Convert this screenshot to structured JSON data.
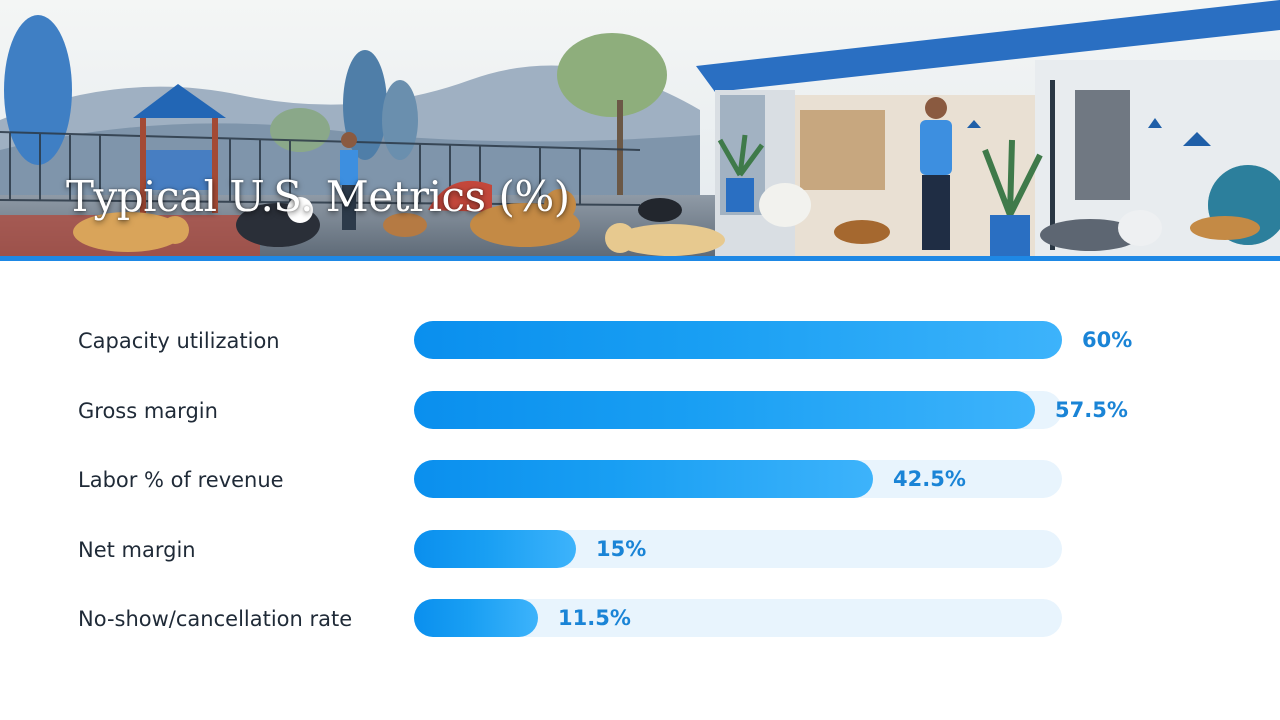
{
  "banner": {
    "title": "Typical U.S. Metrics (%)"
  },
  "colors": {
    "bar_fill": "#0a8fee",
    "bar_fill_light": "#3db3fb",
    "bar_track": "#e8f4fd",
    "value_text": "#1a84d6",
    "label_text": "#1f2a37",
    "accent_rule": "#1e88e5"
  },
  "chart_data": {
    "type": "bar",
    "orientation": "horizontal",
    "title": "Typical U.S. Metrics (%)",
    "categories": [
      "Capacity utilization",
      "Gross margin",
      "Labor % of revenue",
      "Net margin",
      "No-show/cancellation rate"
    ],
    "values": [
      60,
      57.5,
      42.5,
      15,
      11.5
    ],
    "value_labels": [
      "60%",
      "57.5%",
      "42.5%",
      "15%",
      "11.5%"
    ],
    "xlim": [
      0,
      60
    ],
    "grid": false,
    "legend": "none"
  }
}
